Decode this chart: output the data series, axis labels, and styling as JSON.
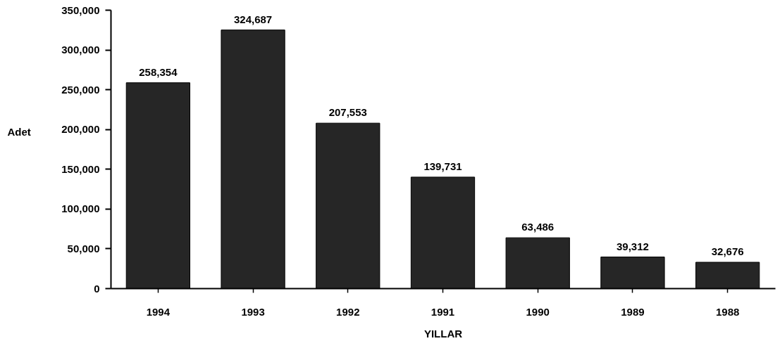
{
  "chart_data": {
    "type": "bar",
    "xlabel": "YILLAR",
    "ylabel": "Adet",
    "categories": [
      "1994",
      "1993",
      "1992",
      "1991",
      "1990",
      "1989",
      "1988"
    ],
    "values": [
      258354,
      324687,
      207553,
      139731,
      63486,
      39312,
      32676
    ],
    "value_labels": [
      "258,354",
      "324,687",
      "207,553",
      "139,731",
      "63,486",
      "39,312",
      "32,676"
    ],
    "color": "#262626",
    "ylim": [
      0,
      350000
    ],
    "yticks": [
      0,
      {
        "value": 50000,
        "label": "50,000"
      },
      {
        "value": 100000,
        "label": "100,000"
      },
      {
        "value": 150000,
        "label": "150,000"
      },
      {
        "value": 200000,
        "label": "200,000"
      },
      {
        "value": 250000,
        "label": "250,000"
      },
      {
        "value": 300000,
        "label": "300,000"
      },
      {
        "value": 350000,
        "label": "350,000"
      }
    ],
    "grid": false
  }
}
